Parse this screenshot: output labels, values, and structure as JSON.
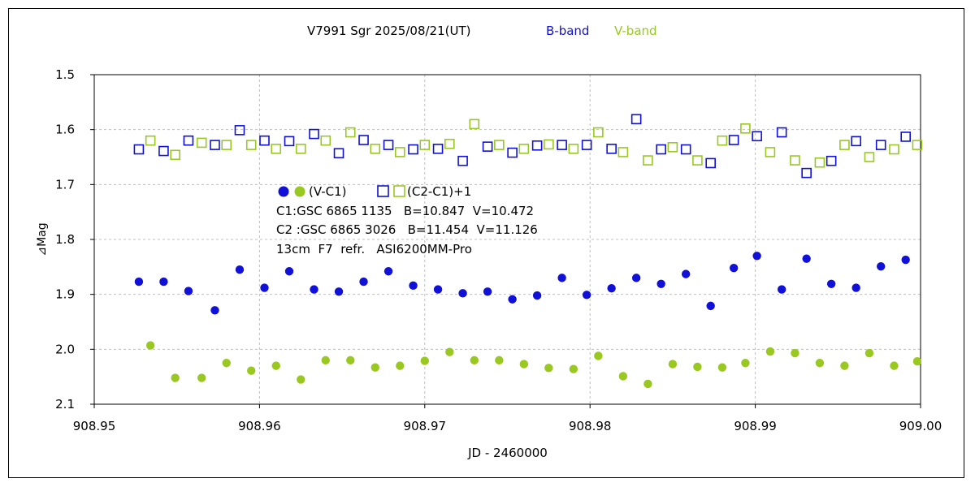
{
  "chart_data": {
    "type": "scatter",
    "title": {
      "main": "V7991 Sgr  2025/08/21(UT)",
      "b_label": "B-band",
      "v_label": "V-band"
    },
    "xlabel": "JD - 2460000",
    "ylabel": "⊿Mag",
    "xlim": [
      908.95,
      909.0
    ],
    "ylim": [
      1.5,
      2.1
    ],
    "y_inverted": true,
    "grid": true,
    "x_ticks": [
      {
        "value": 908.95,
        "label": "908.95"
      },
      {
        "value": 908.96,
        "label": "908.96"
      },
      {
        "value": 908.97,
        "label": "908.97"
      },
      {
        "value": 908.98,
        "label": "908.98"
      },
      {
        "value": 908.99,
        "label": "908.99"
      },
      {
        "value": 909.0,
        "label": "909.00"
      }
    ],
    "y_ticks": [
      {
        "value": 1.5,
        "label": "1.5"
      },
      {
        "value": 1.6,
        "label": "1.6"
      },
      {
        "value": 1.7,
        "label": "1.7"
      },
      {
        "value": 1.8,
        "label": "1.8"
      },
      {
        "value": 1.9,
        "label": "1.9"
      },
      {
        "value": 2.0,
        "label": "2.0"
      },
      {
        "value": 2.1,
        "label": "2.1"
      }
    ],
    "legend": {
      "item1": "(V-C1)",
      "item2": "(C2-C1)+1",
      "line1": "C1:GSC 6865 1135   B=10.847  V=10.472",
      "line2": "C2 :GSC 6865 3026   B=11.454  V=11.126",
      "line3": "13cm  F7  refr.   ASI6200MM-Pro"
    },
    "colors": {
      "b_band": "#1010d8",
      "v_band": "#99c820",
      "grid": "#bfbfbf"
    },
    "series": [
      {
        "band": "B",
        "kind": "V-C1",
        "marker": "filled-circle",
        "color": "#1010d8",
        "x": [
          908.9527,
          908.9542,
          908.9557,
          908.9573,
          908.9588,
          908.9603,
          908.9618,
          908.9633,
          908.9648,
          908.9663,
          908.9678,
          908.9693,
          908.9708,
          908.9723,
          908.9738,
          908.9753,
          908.9768,
          908.9783,
          908.9798,
          908.9813,
          908.9828,
          908.9843,
          908.9858,
          908.9873,
          908.9887,
          908.9901,
          908.9916,
          908.9931,
          908.9946,
          908.9961,
          908.9976,
          908.9991
        ],
        "y": [
          1.877,
          1.877,
          1.894,
          1.929,
          1.855,
          1.888,
          1.858,
          1.891,
          1.895,
          1.877,
          1.858,
          1.884,
          1.891,
          1.898,
          1.895,
          1.909,
          1.902,
          1.87,
          1.901,
          1.889,
          1.87,
          1.881,
          1.863,
          1.921,
          1.852,
          1.83,
          1.891,
          1.835,
          1.881,
          1.888,
          1.849,
          1.837
        ]
      },
      {
        "band": "V",
        "kind": "V-C1",
        "marker": "filled-circle",
        "color": "#99c820",
        "x": [
          908.9534,
          908.9549,
          908.9565,
          908.958,
          908.9595,
          908.961,
          908.9625,
          908.964,
          908.9655,
          908.967,
          908.9685,
          908.97,
          908.9715,
          908.973,
          908.9745,
          908.976,
          908.9775,
          908.979,
          908.9805,
          908.982,
          908.9835,
          908.985,
          908.9865,
          908.988,
          908.9894,
          908.9909,
          908.9924,
          908.9939,
          908.9954,
          908.9969,
          908.9984,
          908.9998
        ],
        "y": [
          1.993,
          2.052,
          2.052,
          2.025,
          2.039,
          2.03,
          2.055,
          2.02,
          2.02,
          2.033,
          2.03,
          2.021,
          2.005,
          2.02,
          2.02,
          2.027,
          2.034,
          2.036,
          2.012,
          2.049,
          2.063,
          2.027,
          2.032,
          2.033,
          2.025,
          2.004,
          2.007,
          2.025,
          2.03,
          2.007,
          2.03,
          2.022
        ]
      },
      {
        "band": "B",
        "kind": "(C2-C1)+1",
        "marker": "open-square",
        "color": "#1010d8",
        "x": [
          908.9527,
          908.9542,
          908.9557,
          908.9573,
          908.9588,
          908.9603,
          908.9618,
          908.9633,
          908.9648,
          908.9663,
          908.9678,
          908.9693,
          908.9708,
          908.9723,
          908.9738,
          908.9753,
          908.9768,
          908.9783,
          908.9798,
          908.9813,
          908.9828,
          908.9843,
          908.9858,
          908.9873,
          908.9887,
          908.9901,
          908.9916,
          908.9931,
          908.9946,
          908.9961,
          908.9976,
          908.9991
        ],
        "y": [
          1.636,
          1.639,
          1.62,
          1.628,
          1.601,
          1.62,
          1.621,
          1.608,
          1.643,
          1.619,
          1.628,
          1.636,
          1.635,
          1.657,
          1.631,
          1.642,
          1.629,
          1.628,
          1.628,
          1.635,
          1.581,
          1.636,
          1.636,
          1.661,
          1.619,
          1.612,
          1.605,
          1.679,
          1.657,
          1.621,
          1.628,
          1.613
        ]
      },
      {
        "band": "V",
        "kind": "(C2-C1)+1",
        "marker": "open-square",
        "color": "#99c820",
        "x": [
          908.9534,
          908.9549,
          908.9565,
          908.958,
          908.9595,
          908.961,
          908.9625,
          908.964,
          908.9655,
          908.967,
          908.9685,
          908.97,
          908.9715,
          908.973,
          908.9745,
          908.976,
          908.9775,
          908.979,
          908.9805,
          908.982,
          908.9835,
          908.985,
          908.9865,
          908.988,
          908.9894,
          908.9909,
          908.9924,
          908.9939,
          908.9954,
          908.9969,
          908.9984,
          908.9998
        ],
        "y": [
          1.62,
          1.646,
          1.624,
          1.628,
          1.628,
          1.635,
          1.635,
          1.62,
          1.605,
          1.635,
          1.641,
          1.628,
          1.626,
          1.59,
          1.628,
          1.635,
          1.627,
          1.635,
          1.605,
          1.641,
          1.656,
          1.632,
          1.656,
          1.62,
          1.598,
          1.641,
          1.656,
          1.66,
          1.628,
          1.65,
          1.636,
          1.628
        ]
      }
    ]
  }
}
